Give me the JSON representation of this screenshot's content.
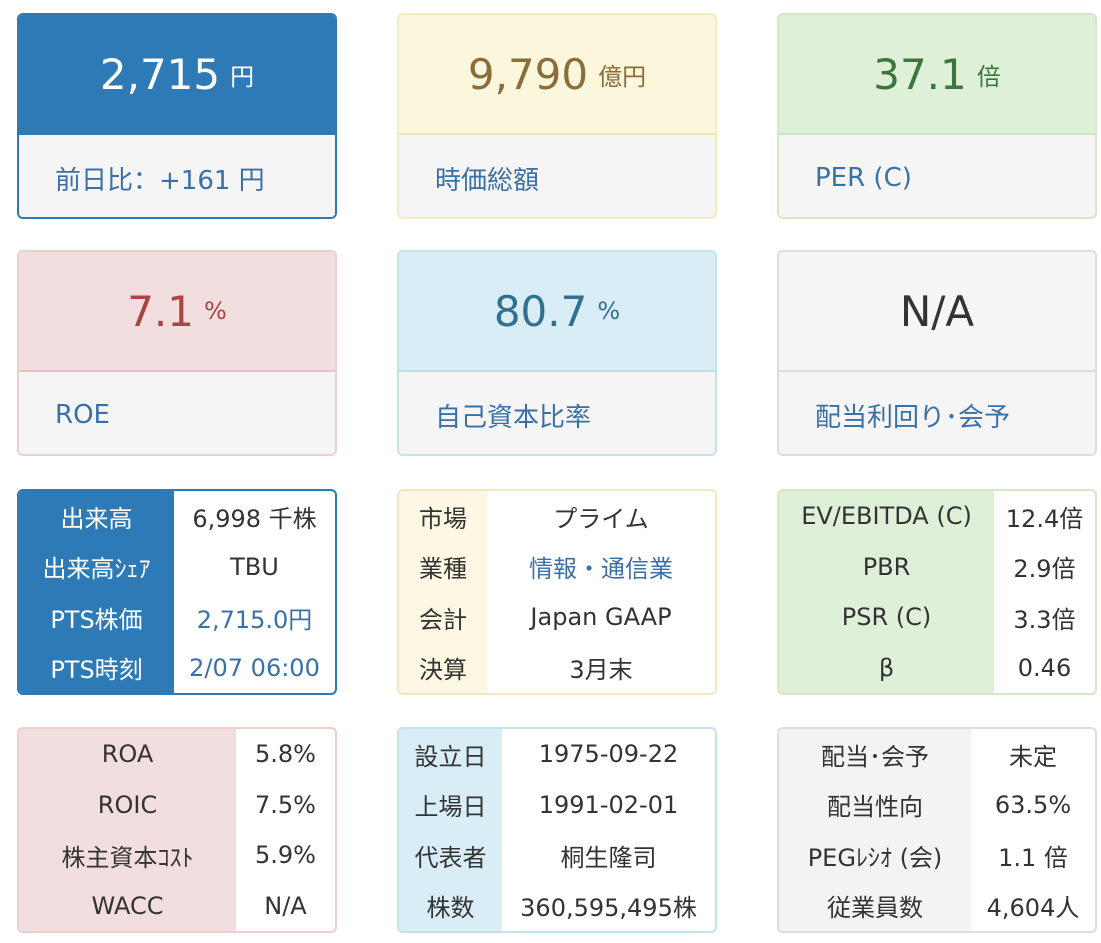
{
  "cards": [
    {
      "value": "2,715",
      "unit": "円",
      "label": "前日比：+161 円"
    },
    {
      "value": "9,790",
      "unit": "億円",
      "label": "時価総額"
    },
    {
      "value": "37.1",
      "unit": "倍",
      "label": "PER (C)"
    },
    {
      "value": "7.1",
      "unit": "%",
      "label": "ROE"
    },
    {
      "value": "80.7",
      "unit": "%",
      "label": "自己資本比率"
    },
    {
      "value": "N/A",
      "unit": "",
      "label": "配当利回り･会予"
    }
  ],
  "volume": [
    {
      "k": "出来高",
      "v": "6,998 千株"
    },
    {
      "k": "出来高ｼｪｱ",
      "v": "TBU"
    },
    {
      "k": "PTS株価",
      "v": "2,715.0円"
    },
    {
      "k": "PTS時刻",
      "v": "2/07 06:00"
    }
  ],
  "market": [
    {
      "k": "市場",
      "v": "プライム"
    },
    {
      "k": "業種",
      "v": "情報・通信業"
    },
    {
      "k": "会計",
      "v": "Japan GAAP"
    },
    {
      "k": "決算",
      "v": "3月末"
    }
  ],
  "valuation": [
    {
      "k": "EV/EBITDA (C)",
      "v": "12.4倍"
    },
    {
      "k": "PBR",
      "v": "2.9倍"
    },
    {
      "k": "PSR (C)",
      "v": "3.3倍"
    },
    {
      "k": "β",
      "v": "0.46"
    }
  ],
  "returns": [
    {
      "k": "ROA",
      "v": "5.8%"
    },
    {
      "k": "ROIC",
      "v": "7.5%"
    },
    {
      "k": "株主資本ｺｽﾄ",
      "v": "5.9%"
    },
    {
      "k": "WACC",
      "v": "N/A"
    }
  ],
  "company": [
    {
      "k": "設立日",
      "v": "1975-09-22"
    },
    {
      "k": "上場日",
      "v": "1991-02-01"
    },
    {
      "k": "代表者",
      "v": "桐生隆司"
    },
    {
      "k": "株数",
      "v": "360,595,495株"
    }
  ],
  "dividend": [
    {
      "k": "配当･会予",
      "v": "未定"
    },
    {
      "k": "配当性向",
      "v": "63.5%"
    },
    {
      "k": "PEGﾚｼｵ (会)",
      "v": "1.1 倍"
    },
    {
      "k": "従業員数",
      "v": "4,604人"
    }
  ]
}
